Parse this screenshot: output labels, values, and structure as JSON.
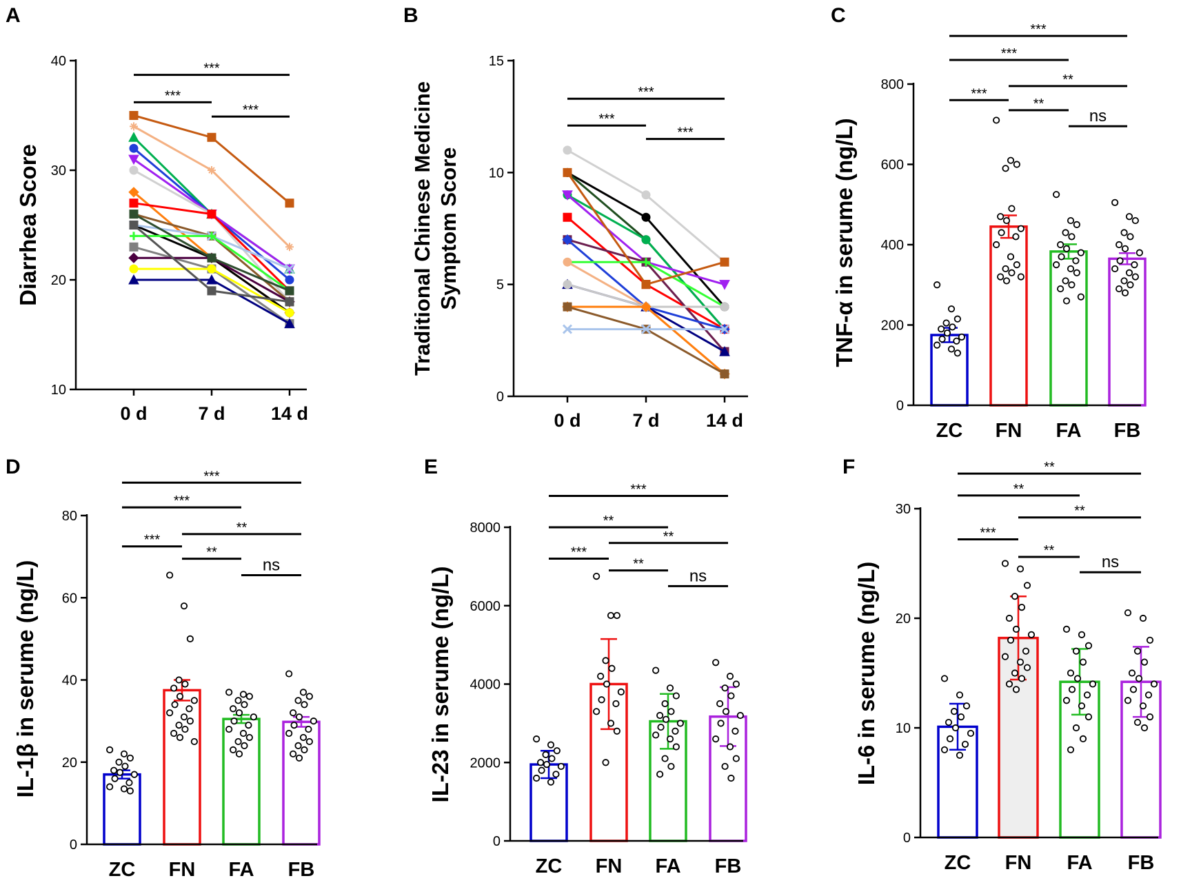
{
  "figure": {
    "panel_letters": [
      "A",
      "B",
      "C",
      "D",
      "E",
      "F"
    ]
  },
  "chart_data": [
    {
      "panel": "A",
      "type": "line",
      "ylabel": "Diarrhea Score",
      "xlabel": "",
      "categories": [
        "0 d",
        "7 d",
        "14 d"
      ],
      "ylim": [
        10,
        40
      ],
      "yticks": [
        10,
        20,
        30,
        40
      ],
      "series": [
        {
          "values": [
            35,
            33,
            27
          ],
          "color": "#c55a11",
          "marker": "square"
        },
        {
          "values": [
            34,
            30,
            23
          ],
          "color": "#f4b183",
          "marker": "star"
        },
        {
          "values": [
            33,
            26,
            21
          ],
          "color": "#00b050",
          "marker": "triangle"
        },
        {
          "values": [
            32,
            26,
            20
          ],
          "color": "#1f3fd8",
          "marker": "circle"
        },
        {
          "values": [
            31,
            26,
            21
          ],
          "color": "#a020f0",
          "marker": "tri-down"
        },
        {
          "values": [
            30,
            26,
            18
          ],
          "color": "#d0d0d0",
          "marker": "circle"
        },
        {
          "values": [
            28,
            22,
            17
          ],
          "color": "#ff7f0e",
          "marker": "diamond"
        },
        {
          "values": [
            27,
            26,
            19
          ],
          "color": "#ff0000",
          "marker": "square"
        },
        {
          "values": [
            26,
            24,
            18
          ],
          "color": "#8b5a2b",
          "marker": "square"
        },
        {
          "values": [
            25,
            22,
            17
          ],
          "color": "#000000",
          "marker": "circle"
        },
        {
          "values": [
            25,
            24,
            21
          ],
          "color": "#a9c4eb",
          "marker": "x"
        },
        {
          "values": [
            24,
            24,
            19
          ],
          "color": "#33ff33",
          "marker": "plus"
        },
        {
          "values": [
            23,
            21,
            16
          ],
          "color": "#808080",
          "marker": "square"
        },
        {
          "values": [
            22,
            22,
            18
          ],
          "color": "#4b0040",
          "marker": "diamond"
        },
        {
          "values": [
            21,
            21,
            17
          ],
          "color": "#ffff00",
          "marker": "circle"
        },
        {
          "values": [
            20,
            20,
            16
          ],
          "color": "#000080",
          "marker": "triangle"
        },
        {
          "values": [
            25,
            19,
            18
          ],
          "color": "#555555",
          "marker": "square"
        },
        {
          "values": [
            26,
            22,
            19
          ],
          "color": "#2e4d2e",
          "marker": "square"
        }
      ],
      "significance": [
        {
          "from": 0,
          "to": 2,
          "label": "***",
          "y": 38.7
        },
        {
          "from": 0,
          "to": 1,
          "label": "***",
          "y": 36.2
        },
        {
          "from": 1,
          "to": 2,
          "label": "***",
          "y": 34.9
        }
      ]
    },
    {
      "panel": "B",
      "type": "line",
      "ylabel_lines": [
        "Traditional Chinese Medicine",
        "Symptom Score"
      ],
      "xlabel": "",
      "categories": [
        "0 d",
        "7 d",
        "14 d"
      ],
      "ylim": [
        0,
        15
      ],
      "yticks": [
        0,
        5,
        10,
        15
      ],
      "series": [
        {
          "values": [
            11,
            9,
            6
          ],
          "color": "#d0d0d0",
          "marker": "circle"
        },
        {
          "values": [
            10,
            8,
            4
          ],
          "color": "#000000",
          "marker": "circle"
        },
        {
          "values": [
            10,
            7,
            3
          ],
          "color": "#1f4e1f",
          "marker": "circle"
        },
        {
          "values": [
            9,
            7,
            3
          ],
          "color": "#00b050",
          "marker": "circle"
        },
        {
          "values": [
            9,
            6,
            5
          ],
          "color": "#a020f0",
          "marker": "tri-down"
        },
        {
          "values": [
            8,
            5,
            3
          ],
          "color": "#ff0000",
          "marker": "square"
        },
        {
          "values": [
            7,
            6,
            2
          ],
          "color": "#6b1e4e",
          "marker": "square"
        },
        {
          "values": [
            7,
            4,
            3
          ],
          "color": "#1f3fd8",
          "marker": "diamond"
        },
        {
          "values": [
            6,
            6,
            4
          ],
          "color": "#33ff33",
          "marker": "plus"
        },
        {
          "values": [
            6,
            4,
            1
          ],
          "color": "#f4b183",
          "marker": "circle"
        },
        {
          "values": [
            5,
            4,
            2
          ],
          "color": "#000080",
          "marker": "triangle"
        },
        {
          "values": [
            5,
            4,
            4
          ],
          "color": "#c8c8c8",
          "marker": "circle"
        },
        {
          "values": [
            4,
            4,
            1
          ],
          "color": "#ff7f0e",
          "marker": "diamond"
        },
        {
          "values": [
            4,
            3,
            1
          ],
          "color": "#8b5a2b",
          "marker": "square"
        },
        {
          "values": [
            3,
            3,
            3
          ],
          "color": "#a9c4eb",
          "marker": "x"
        },
        {
          "values": [
            10,
            5,
            6
          ],
          "color": "#c55a11",
          "marker": "square"
        }
      ],
      "significance": [
        {
          "from": 0,
          "to": 2,
          "label": "***",
          "y": 13.3
        },
        {
          "from": 0,
          "to": 1,
          "label": "***",
          "y": 12.1
        },
        {
          "from": 1,
          "to": 2,
          "label": "***",
          "y": 11.5
        }
      ]
    },
    {
      "panel": "C",
      "type": "bar",
      "ylabel": "TNF-α in serume (ng/L)",
      "categories": [
        "ZC",
        "FN",
        "FA",
        "FB"
      ],
      "values": [
        175,
        445,
        383,
        365
      ],
      "errors": [
        18,
        28,
        18,
        14
      ],
      "colors": [
        "#0000cc",
        "#ee1111",
        "#22bb22",
        "#aa22dd"
      ],
      "fills": [
        "#ffffff",
        "#ffffff",
        "#ffffff",
        "#ffffff"
      ],
      "ylim": [
        0,
        800
      ],
      "yticks": [
        0,
        200,
        400,
        600,
        800
      ],
      "points": [
        [
          300,
          240,
          215,
          205,
          195,
          190,
          180,
          170,
          165,
          160,
          150,
          140,
          130
        ],
        [
          710,
          610,
          600,
          590,
          490,
          470,
          460,
          440,
          430,
          420,
          400,
          370,
          350,
          340,
          330,
          320,
          310,
          320
        ],
        [
          525,
          460,
          450,
          430,
          420,
          400,
          390,
          380,
          370,
          360,
          350,
          340,
          330,
          310,
          300,
          290,
          260,
          270
        ],
        [
          505,
          470,
          460,
          430,
          420,
          400,
          390,
          380,
          360,
          350,
          340,
          330,
          320,
          310,
          300,
          290,
          280
        ]
      ],
      "significance": [
        {
          "from": 0,
          "to": 3,
          "label": "***",
          "y": 920
        },
        {
          "from": 0,
          "to": 2,
          "label": "***",
          "y": 860
        },
        {
          "from": 1,
          "to": 3,
          "label": "**",
          "y": 795
        },
        {
          "from": 0,
          "to": 1,
          "label": "***",
          "y": 760
        },
        {
          "from": 1,
          "to": 2,
          "label": "**",
          "y": 735
        },
        {
          "from": 2,
          "to": 3,
          "label": "ns",
          "y": 695
        }
      ]
    },
    {
      "panel": "D",
      "type": "bar",
      "ylabel": "IL-1β in serume (ng/L)",
      "categories": [
        "ZC",
        "FN",
        "FA",
        "FB"
      ],
      "values": [
        17,
        37.5,
        30.5,
        29.8
      ],
      "errors": [
        1,
        2.5,
        1,
        1.2
      ],
      "colors": [
        "#0000cc",
        "#ee1111",
        "#22bb22",
        "#aa22dd"
      ],
      "fills": [
        "#ffffff",
        "#ffffff",
        "#ffffff",
        "#ffffff"
      ],
      "ylim": [
        0,
        80
      ],
      "yticks": [
        0,
        20,
        40,
        60,
        80
      ],
      "points": [
        [
          23,
          22,
          21,
          20,
          19,
          18,
          17.5,
          17,
          16,
          15,
          14,
          13.5,
          13
        ],
        [
          65.5,
          58,
          50,
          40,
          39,
          38,
          36,
          35,
          34,
          33,
          32,
          31,
          30,
          29,
          28,
          27,
          26,
          25
        ],
        [
          37,
          36.5,
          36,
          35,
          34,
          33,
          32,
          31,
          30,
          29,
          28,
          27,
          26,
          25,
          24,
          23,
          22
        ],
        [
          41.5,
          37,
          36,
          35,
          34,
          32,
          31,
          30,
          29,
          28,
          27,
          26,
          25,
          24,
          23,
          22,
          21
        ]
      ],
      "significance": [
        {
          "from": 0,
          "to": 3,
          "label": "***",
          "y": 88
        },
        {
          "from": 0,
          "to": 2,
          "label": "***",
          "y": 82
        },
        {
          "from": 1,
          "to": 3,
          "label": "**",
          "y": 75.5
        },
        {
          "from": 0,
          "to": 1,
          "label": "***",
          "y": 72.5
        },
        {
          "from": 1,
          "to": 2,
          "label": "**",
          "y": 69.5
        },
        {
          "from": 2,
          "to": 3,
          "label": "ns",
          "y": 65.5
        }
      ]
    },
    {
      "panel": "E",
      "type": "bar",
      "ylabel": "IL-23 in serume (ng/L)",
      "categories": [
        "ZC",
        "FN",
        "FA",
        "FB"
      ],
      "values": [
        1950,
        4000,
        3050,
        3170
      ],
      "errors": [
        350,
        1150,
        700,
        750
      ],
      "colors": [
        "#0000cc",
        "#ee1111",
        "#22bb22",
        "#aa22dd"
      ],
      "fills": [
        "#ffffff",
        "#ffffff",
        "#ffffff",
        "#ffffff"
      ],
      "ylim": [
        0,
        8000
      ],
      "yticks": [
        0,
        2000,
        4000,
        6000,
        8000
      ],
      "points": [
        [
          2600,
          2450,
          2300,
          2200,
          2100,
          2000,
          1950,
          1900,
          1800,
          1700,
          1600,
          1500
        ],
        [
          6750,
          5750,
          5750,
          4600,
          4400,
          4200,
          4000,
          3800,
          3600,
          3500,
          3300,
          3000,
          2800,
          2000
        ],
        [
          4350,
          3900,
          3700,
          3500,
          3300,
          3200,
          3100,
          3000,
          2900,
          2800,
          2700,
          2600,
          2400,
          2100,
          1900,
          1700
        ],
        [
          4550,
          4200,
          4000,
          3900,
          3700,
          3500,
          3300,
          3200,
          3000,
          2800,
          2600,
          2400,
          2100,
          1900,
          1600
        ]
      ],
      "significance": [
        {
          "from": 0,
          "to": 3,
          "label": "***",
          "y": 8800
        },
        {
          "from": 0,
          "to": 2,
          "label": "**",
          "y": 8000
        },
        {
          "from": 1,
          "to": 3,
          "label": "**",
          "y": 7600
        },
        {
          "from": 0,
          "to": 1,
          "label": "***",
          "y": 7200
        },
        {
          "from": 1,
          "to": 2,
          "label": "**",
          "y": 6900
        },
        {
          "from": 2,
          "to": 3,
          "label": "ns",
          "y": 6500
        }
      ]
    },
    {
      "panel": "F",
      "type": "bar",
      "ylabel": "IL-6 in serume (ng/L)",
      "categories": [
        "ZC",
        "FN",
        "FA",
        "FB"
      ],
      "values": [
        10.1,
        18.2,
        14.2,
        14.2
      ],
      "errors": [
        2.1,
        3.8,
        3,
        3.2
      ],
      "colors": [
        "#0000cc",
        "#ee1111",
        "#22bb22",
        "#aa22dd"
      ],
      "fills": [
        "#ffffff",
        "#eeeeee",
        "#ffffff",
        "#ffffff"
      ],
      "ylim": [
        0,
        30
      ],
      "yticks": [
        0,
        10,
        20,
        30
      ],
      "points": [
        [
          14.5,
          13,
          12,
          11.5,
          11,
          10.5,
          10,
          9.5,
          9,
          8.5,
          8,
          7.5
        ],
        [
          25,
          24.5,
          23,
          22,
          21,
          20,
          19,
          18.5,
          18,
          17,
          16.5,
          16,
          15.5,
          15,
          14.5,
          14,
          13.5
        ],
        [
          19,
          18.5,
          17.5,
          17,
          16,
          15,
          14.5,
          14,
          13.5,
          13,
          12.5,
          12,
          11,
          10,
          9,
          8
        ],
        [
          20.5,
          20,
          18,
          17,
          16,
          15,
          14.5,
          14,
          13.5,
          13,
          12.5,
          12,
          11,
          10.5,
          10
        ]
      ],
      "significance": [
        {
          "from": 0,
          "to": 3,
          "label": "**",
          "y": 33.2
        },
        {
          "from": 0,
          "to": 2,
          "label": "**",
          "y": 31.2
        },
        {
          "from": 1,
          "to": 3,
          "label": "**",
          "y": 29.2
        },
        {
          "from": 0,
          "to": 1,
          "label": "***",
          "y": 27.2
        },
        {
          "from": 1,
          "to": 2,
          "label": "**",
          "y": 25.6
        },
        {
          "from": 2,
          "to": 3,
          "label": "ns",
          "y": 24.2
        }
      ]
    }
  ]
}
